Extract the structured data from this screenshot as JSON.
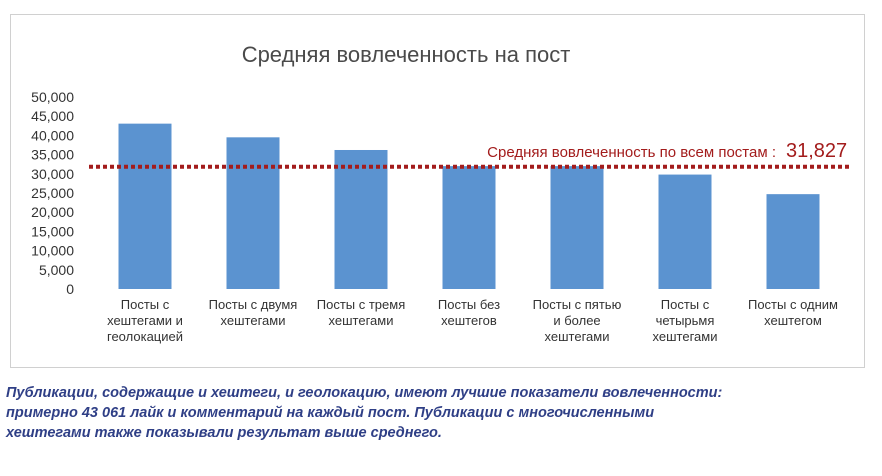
{
  "chart_data": {
    "type": "bar",
    "title": "Средняя вовлеченность на пост",
    "categories": [
      [
        "Посты с",
        "хештегами и",
        "геолокацией"
      ],
      [
        "Посты с двумя",
        "хештегами"
      ],
      [
        "Посты с тремя",
        "хештегами"
      ],
      [
        "Посты без",
        "хештегов"
      ],
      [
        "Посты с пятью",
        "и более",
        "хештегами"
      ],
      [
        "Посты с",
        "четырьмя",
        "хештегами"
      ],
      [
        "Посты с одним",
        "хештегом"
      ]
    ],
    "values": [
      43061,
      39500,
      36200,
      32000,
      32000,
      29800,
      24700
    ],
    "ylim": [
      0,
      50000
    ],
    "yticks": [
      0,
      5000,
      10000,
      15000,
      20000,
      25000,
      30000,
      35000,
      40000,
      45000,
      50000
    ],
    "ytick_labels": [
      "0",
      "5,000",
      "10,000",
      "15,000",
      "20,000",
      "25,000",
      "30,000",
      "35,000",
      "40,000",
      "45,000",
      "50,000"
    ],
    "xlabel": "",
    "ylabel": "",
    "grid": false,
    "average": {
      "label": "Средняя вовлеченность по всем постам :",
      "value_label": "31,827",
      "value": 31827
    },
    "colors": {
      "bar": "#5b93d0",
      "average_line": "#a31c1c"
    }
  },
  "caption": {
    "lines": [
      "Публикации, содержащие и хештеги, и геолокацию, имеют лучшие показатели вовлеченности:",
      "примерно 43 061 лайк и комментарий  на каждый пост. Публикации с многочисленными",
      "хештегами также показывали результат выше среднего."
    ]
  }
}
